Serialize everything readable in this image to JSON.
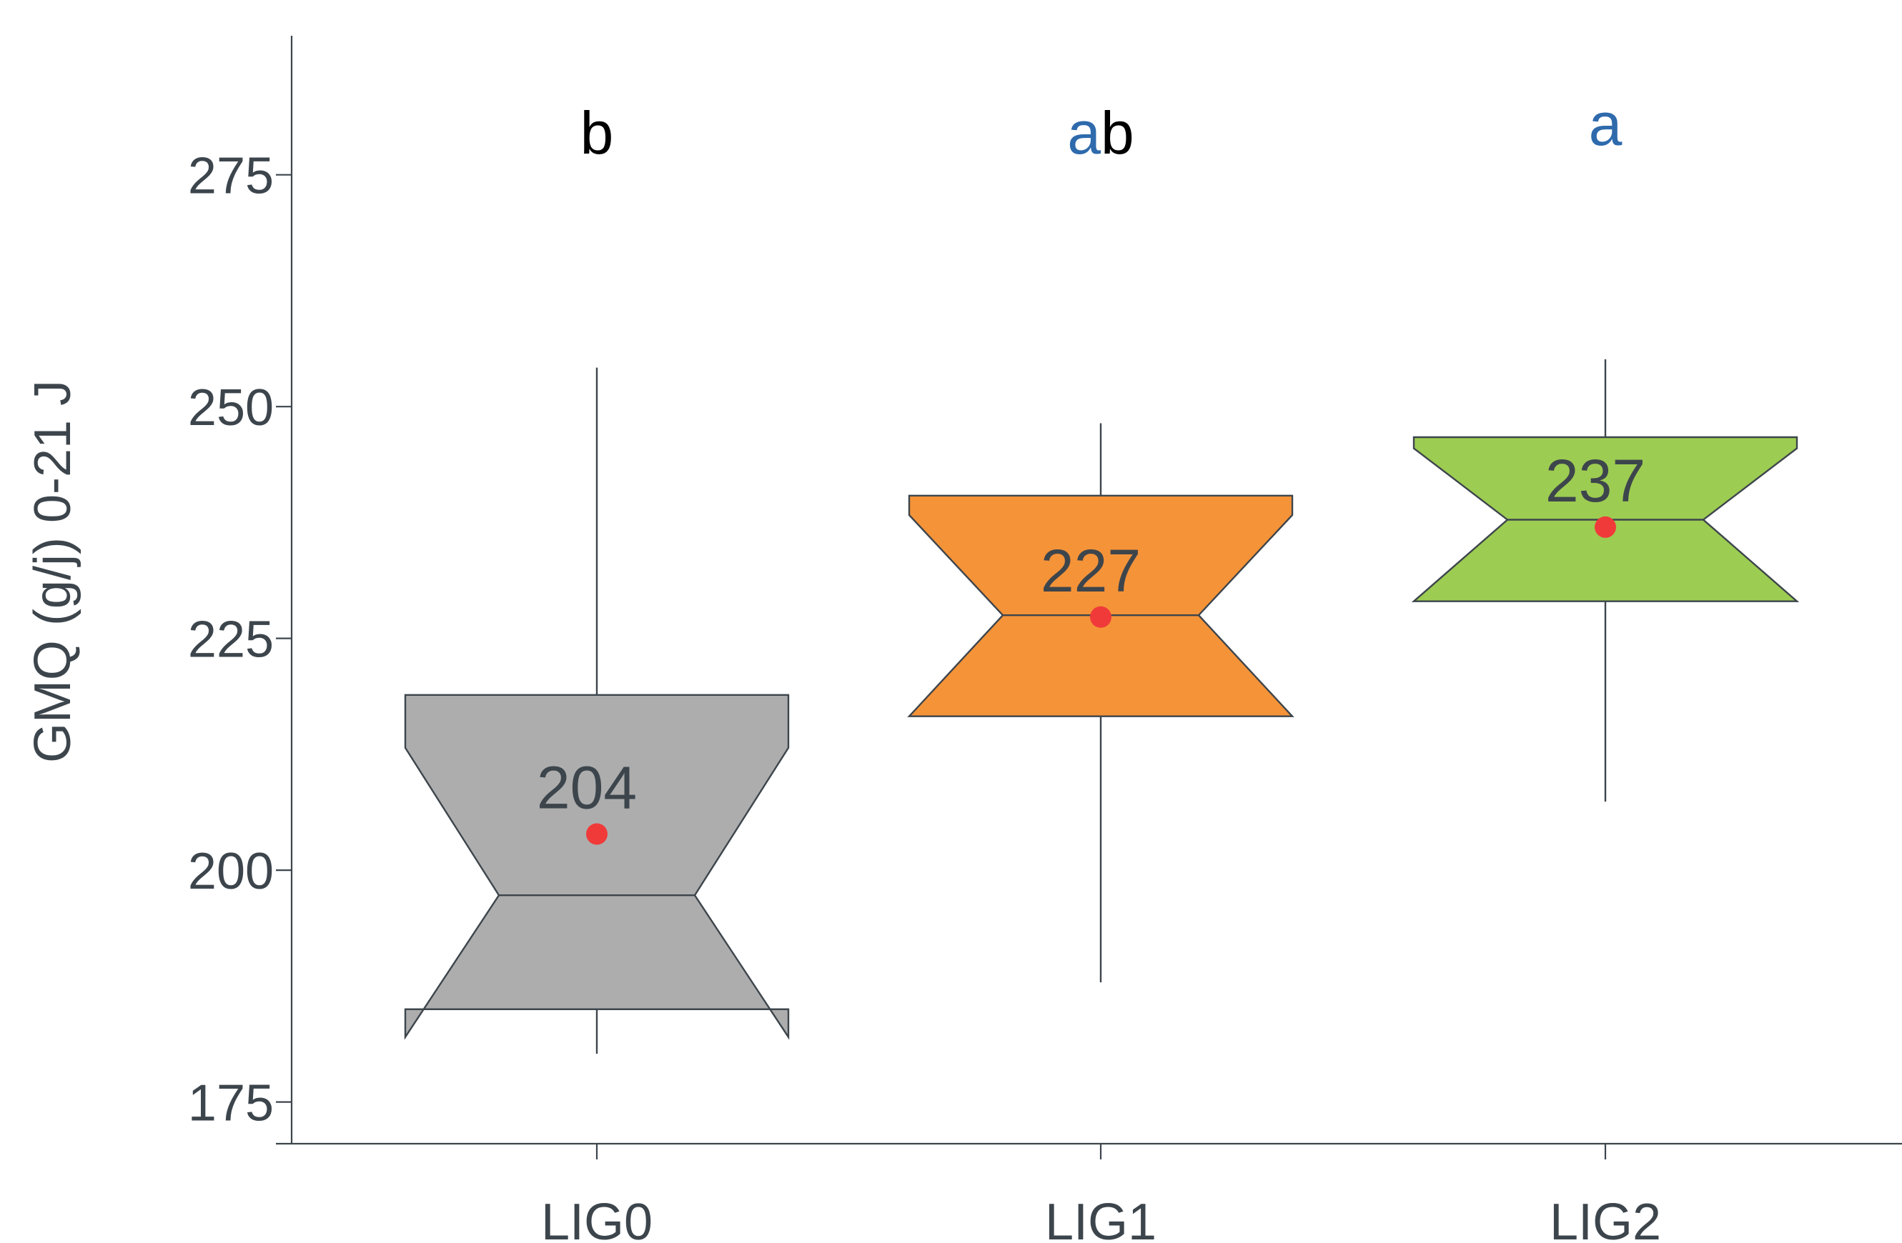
{
  "chart_data": {
    "type": "box",
    "ylabel": "GMQ (g/j) 0-21 J",
    "xlabel": "",
    "ylim": [
      170.5,
      290
    ],
    "yticks": [
      175,
      200,
      225,
      250,
      275
    ],
    "categories": [
      "LIG0",
      "LIG1",
      "LIG2"
    ],
    "notched": true,
    "boxes": [
      {
        "name": "LIG0",
        "whisker_low": 180.2,
        "q1": 185.0,
        "median": 197.3,
        "q3": 218.9,
        "whisker_high": 254.2,
        "notch_low": 182.0,
        "notch_high": 213.2,
        "mean": 203.9,
        "mean_label": "204",
        "color": "#adadad",
        "letters": [
          {
            "text": "b",
            "color": "#000000"
          }
        ]
      },
      {
        "name": "LIG1",
        "whisker_low": 187.9,
        "q1": 216.6,
        "median": 227.5,
        "q3": 240.4,
        "whisker_high": 248.2,
        "notch_low": 216.6,
        "notch_high": 238.3,
        "mean": 227.3,
        "mean_label": "227",
        "color": "#f59338",
        "letters": [
          {
            "text": "a",
            "color": "#2e6aac"
          },
          {
            "text": "b",
            "color": "#000000"
          }
        ]
      },
      {
        "name": "LIG2",
        "whisker_low": 207.4,
        "q1": 229.0,
        "median": 237.8,
        "q3": 246.7,
        "whisker_high": 255.1,
        "notch_low": 229.0,
        "notch_high": 245.5,
        "mean": 237.0,
        "mean_label": "237",
        "color": "#9dcc52",
        "letters": [
          {
            "text": "a",
            "color": "#2e6aac"
          }
        ]
      }
    ],
    "mean_marker_color": "#f03a3a",
    "grid": false,
    "legend": "none"
  }
}
